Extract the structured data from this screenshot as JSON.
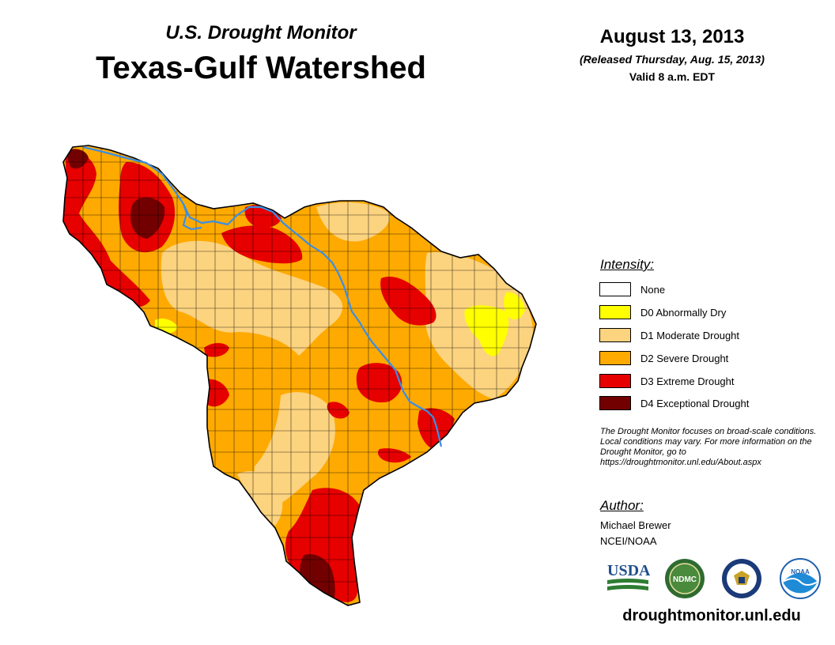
{
  "header": {
    "subtitle": "U.S. Drought Monitor",
    "title": "Texas-Gulf Watershed",
    "date": "August 13, 2013",
    "released": "(Released Thursday, Aug. 15, 2013)",
    "valid": "Valid 8 a.m. EDT"
  },
  "legend": {
    "title": "Intensity:",
    "items": [
      {
        "label": "None",
        "color": "#ffffff"
      },
      {
        "label": "D0 Abnormally Dry",
        "color": "#ffff00"
      },
      {
        "label": "D1 Moderate Drought",
        "color": "#fcd37f"
      },
      {
        "label": "D2 Severe Drought",
        "color": "#ffaa00"
      },
      {
        "label": "D3 Extreme Drought",
        "color": "#e60000"
      },
      {
        "label": "D4 Exceptional Drought",
        "color": "#730000"
      }
    ]
  },
  "note": "The Drought Monitor focuses on broad-scale conditions. Local conditions may vary. For more information on the Drought Monitor, go to https://droughtmonitor.unl.edu/About.aspx",
  "author": {
    "title": "Author:",
    "name": "Michael Brewer",
    "org": "NCEI/NOAA"
  },
  "logos": {
    "usda": "USDA",
    "ndmc": "NDMC",
    "noaa": "NOAA"
  },
  "footer_url": "droughtmonitor.unl.edu",
  "colors": {
    "river": "#3a8ee6",
    "county_line": "#000000"
  }
}
